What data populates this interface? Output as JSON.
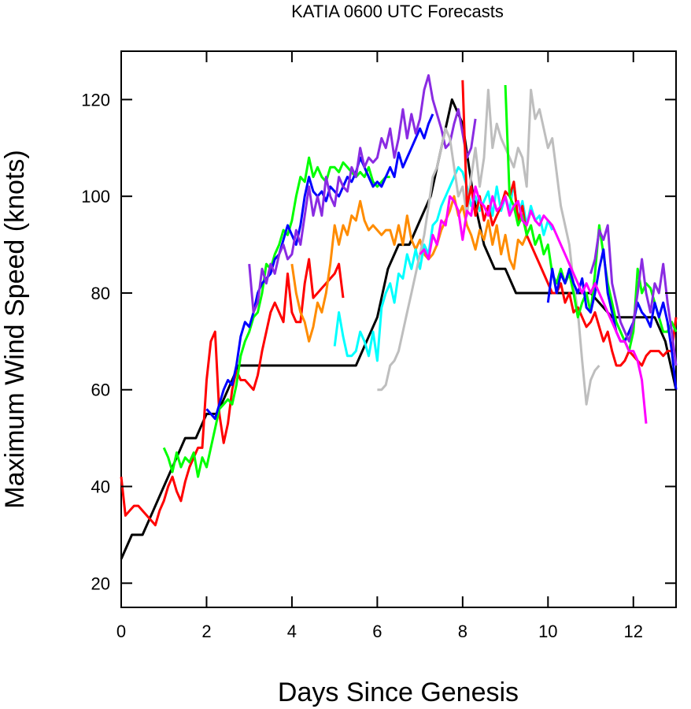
{
  "chart_data": {
    "type": "line",
    "title": "KATIA 0600 UTC Forecasts",
    "xlabel": "Days Since Genesis",
    "ylabel": "Maximum Wind Speed (knots)",
    "xlim": [
      0,
      13
    ],
    "ylim": [
      15,
      130
    ],
    "xticks": [
      0,
      2,
      4,
      6,
      8,
      10,
      12
    ],
    "yticks": [
      20,
      40,
      60,
      80,
      100,
      120
    ],
    "grid": false,
    "legend": "none",
    "series": [
      {
        "color": "#000000",
        "x": [
          0,
          0.25,
          0.5,
          0.75,
          1.0,
          1.25,
          1.5,
          1.75,
          2.0,
          2.25,
          2.5,
          2.75,
          3.0,
          3.5,
          4.0,
          4.5,
          5.0,
          5.5,
          5.75,
          6.0,
          6.25,
          6.5,
          6.75,
          7.0,
          7.25,
          7.5,
          7.75,
          8.0,
          8.25,
          8.5,
          8.75,
          9.0,
          9.25,
          9.5,
          10.0,
          10.5,
          11.0,
          11.5,
          12.0,
          12.5,
          12.75,
          13.0
        ],
        "y": [
          25,
          30,
          30,
          35,
          40,
          45,
          50,
          50,
          55,
          55,
          60,
          65,
          65,
          65,
          65,
          65,
          65,
          65,
          70,
          75,
          85,
          90,
          90,
          95,
          100,
          110,
          120,
          115,
          100,
          90,
          85,
          85,
          80,
          80,
          80,
          80,
          80,
          75,
          75,
          75,
          70,
          60
        ]
      },
      {
        "color": "#ff0000",
        "x": [
          0,
          0.1,
          0.2,
          0.3,
          0.4,
          0.5,
          0.6,
          0.7,
          0.8,
          0.9,
          1.0,
          1.1,
          1.2,
          1.3,
          1.4,
          1.5,
          1.6,
          1.7,
          1.8,
          1.9,
          2.0,
          2.1,
          2.2,
          2.3,
          2.4,
          2.5,
          2.6,
          2.7,
          2.8,
          2.9,
          3.0,
          3.1,
          3.2,
          3.3,
          3.4,
          3.5,
          3.6,
          3.7,
          3.8,
          3.9,
          4.0,
          4.1,
          4.2,
          4.3,
          4.4,
          4.5,
          4.6,
          4.7,
          4.8,
          4.9,
          5.0,
          5.1,
          5.2
        ],
        "y": [
          42,
          34,
          35,
          36,
          36,
          35,
          34,
          33,
          32,
          35,
          37,
          40,
          42,
          39,
          37,
          41,
          44,
          46,
          48,
          48,
          62,
          70,
          72,
          55,
          49,
          53,
          60,
          64,
          62,
          62,
          61,
          60,
          63,
          68,
          72,
          76,
          78,
          76,
          74,
          84,
          76,
          74,
          74,
          82,
          87,
          79,
          80,
          81,
          82,
          83,
          84,
          86,
          79
        ]
      },
      {
        "color": "#00ff00",
        "x": [
          1.0,
          1.1,
          1.2,
          1.3,
          1.4,
          1.5,
          1.6,
          1.7,
          1.8,
          1.9,
          2.0,
          2.1,
          2.2,
          2.3,
          2.4,
          2.5,
          2.6,
          2.7,
          2.8,
          2.9,
          3.0,
          3.1,
          3.2,
          3.3,
          3.4,
          3.5,
          3.6,
          3.7,
          3.8,
          3.9,
          4.0,
          4.1,
          4.2,
          4.3,
          4.4,
          4.5,
          4.6,
          4.7,
          4.8,
          4.9,
          5.0,
          5.1,
          5.2,
          5.3,
          5.4,
          5.5,
          5.6,
          5.7,
          5.8,
          5.9,
          6.0,
          6.1,
          6.2,
          6.3
        ],
        "y": [
          48,
          46,
          43,
          47,
          44,
          46,
          45,
          47,
          42,
          46,
          44,
          48,
          52,
          56,
          57,
          58,
          57,
          61,
          67,
          70,
          72,
          75,
          76,
          80,
          86,
          85,
          88,
          90,
          93,
          92,
          95,
          100,
          104,
          103,
          108,
          104,
          106,
          104,
          103,
          106,
          106,
          105,
          107,
          106,
          105,
          104,
          105,
          104,
          106,
          103,
          102,
          103,
          104,
          104
        ]
      },
      {
        "color": "#0000ff",
        "x": [
          2.0,
          2.1,
          2.2,
          2.3,
          2.4,
          2.5,
          2.6,
          2.7,
          2.8,
          2.9,
          3.0,
          3.1,
          3.2,
          3.3,
          3.4,
          3.5,
          3.6,
          3.7,
          3.8,
          3.9,
          4.0,
          4.1,
          4.2,
          4.3,
          4.4,
          4.5,
          4.6,
          4.7,
          4.8,
          4.9,
          5.0,
          5.1,
          5.2,
          5.3,
          5.4,
          5.5,
          5.6,
          5.7,
          5.8,
          5.9,
          6.0,
          6.1,
          6.2,
          6.3,
          6.4,
          6.5,
          6.6,
          6.7,
          6.8,
          6.9,
          7.0,
          7.1,
          7.2,
          7.3
        ],
        "y": [
          56,
          55,
          54,
          57,
          60,
          62,
          61,
          65,
          71,
          74,
          73,
          76,
          80,
          82,
          83,
          84,
          87,
          88,
          91,
          94,
          92,
          90,
          94,
          100,
          104,
          101,
          100,
          101,
          99,
          102,
          101,
          100,
          102,
          104,
          103,
          105,
          108,
          106,
          104,
          102,
          103,
          102,
          104,
          106,
          104,
          109,
          106,
          108,
          110,
          112,
          114,
          112,
          115,
          117
        ]
      },
      {
        "color": "#8a2be2",
        "x": [
          3.0,
          3.1,
          3.2,
          3.3,
          3.4,
          3.5,
          3.6,
          3.7,
          3.8,
          3.9,
          4.0,
          4.1,
          4.2,
          4.3,
          4.4,
          4.5,
          4.6,
          4.7,
          4.8,
          4.9,
          5.0,
          5.1,
          5.2,
          5.3,
          5.4,
          5.5,
          5.6,
          5.7,
          5.8,
          5.9,
          6.0,
          6.1,
          6.2,
          6.3,
          6.4,
          6.5,
          6.6,
          6.7,
          6.8,
          6.9,
          7.0,
          7.1,
          7.2,
          7.3,
          7.4,
          7.5,
          7.6,
          7.7,
          7.8,
          7.9,
          8.0,
          8.1,
          8.2,
          8.3
        ],
        "y": [
          86,
          76,
          78,
          85,
          82,
          86,
          84,
          88,
          90,
          87,
          88,
          93,
          90,
          96,
          102,
          96,
          100,
          96,
          104,
          100,
          98,
          104,
          102,
          101,
          106,
          104,
          110,
          106,
          108,
          107,
          108,
          112,
          110,
          114,
          108,
          112,
          118,
          112,
          117,
          113,
          116,
          122,
          125,
          120,
          117,
          114,
          110,
          111,
          115,
          118,
          113,
          108,
          110,
          116
        ]
      },
      {
        "color": "#ff8c00",
        "x": [
          4.0,
          4.1,
          4.2,
          4.3,
          4.4,
          4.5,
          4.6,
          4.7,
          4.8,
          4.9,
          5.0,
          5.1,
          5.2,
          5.3,
          5.4,
          5.5,
          5.6,
          5.7,
          5.8,
          5.9,
          6.0,
          6.1,
          6.2,
          6.3,
          6.4,
          6.5,
          6.6,
          6.7,
          6.8,
          6.9,
          7.0,
          7.1,
          7.2,
          7.3,
          7.4,
          7.5,
          7.6,
          7.7,
          7.8,
          7.9,
          8.0,
          8.1,
          8.2,
          8.3,
          8.4,
          8.5,
          8.6,
          8.7,
          8.8,
          8.9,
          9.0,
          9.1,
          9.2,
          9.3,
          9.4,
          9.5
        ],
        "y": [
          86,
          80,
          76,
          74,
          70,
          73,
          78,
          76,
          80,
          86,
          94,
          90,
          94,
          92,
          96,
          95,
          99,
          95,
          93,
          94,
          93,
          92,
          93,
          93,
          90,
          94,
          90,
          96,
          91,
          89,
          91,
          88,
          87,
          88,
          90,
          93,
          95,
          97,
          100,
          96,
          98,
          94,
          92,
          89,
          93,
          91,
          95,
          90,
          94,
          88,
          92,
          87,
          85,
          91,
          90,
          92
        ]
      },
      {
        "color": "#00ffff",
        "x": [
          5.0,
          5.1,
          5.2,
          5.3,
          5.4,
          5.5,
          5.6,
          5.7,
          5.8,
          5.9,
          6.0,
          6.1,
          6.2,
          6.3,
          6.4,
          6.5,
          6.6,
          6.7,
          6.8,
          6.9,
          7.0,
          7.1,
          7.2,
          7.3,
          7.4,
          7.5,
          7.6,
          7.7,
          7.8,
          7.9,
          8.0,
          8.1,
          8.2,
          8.3,
          8.4,
          8.5,
          8.6,
          8.7,
          8.8,
          8.9,
          9.0,
          9.1,
          9.2,
          9.3,
          9.4,
          9.5,
          9.6,
          9.7,
          9.8,
          9.9,
          10.0,
          10.1
        ],
        "y": [
          69,
          76,
          71,
          67,
          67,
          68,
          72,
          70,
          67,
          72,
          66,
          77,
          80,
          82,
          78,
          84,
          83,
          88,
          85,
          89,
          85,
          90,
          88,
          94,
          95,
          98,
          100,
          102,
          104,
          106,
          105,
          102,
          98,
          100,
          97,
          99,
          101,
          96,
          102,
          97,
          100,
          97,
          103,
          95,
          99,
          94,
          98,
          95,
          96,
          92,
          95,
          93
        ]
      },
      {
        "color": "#bebebe",
        "x": [
          6.0,
          6.1,
          6.2,
          6.3,
          6.4,
          6.5,
          6.6,
          6.7,
          6.8,
          6.9,
          7.0,
          7.1,
          7.2,
          7.3,
          7.4,
          7.5,
          7.6,
          7.7,
          7.8,
          7.9,
          8.0,
          8.1,
          8.2,
          8.3,
          8.4,
          8.5,
          8.6,
          8.7,
          8.8,
          8.9,
          9.0,
          9.1,
          9.2,
          9.3,
          9.4,
          9.5,
          9.6,
          9.7,
          9.8,
          9.9,
          10.0,
          10.1,
          10.2,
          10.3,
          10.4,
          10.5,
          10.6,
          10.7,
          10.8,
          10.9,
          11.0,
          11.1,
          11.2
        ],
        "y": [
          60,
          60,
          61,
          65,
          66,
          68,
          72,
          76,
          80,
          84,
          88,
          92,
          98,
          104,
          106,
          110,
          114,
          112,
          106,
          100,
          102,
          96,
          104,
          110,
          102,
          108,
          122,
          110,
          115,
          112,
          110,
          108,
          106,
          110,
          108,
          102,
          122,
          116,
          118,
          114,
          110,
          112,
          105,
          98,
          94,
          90,
          82,
          76,
          66,
          57,
          62,
          64,
          65
        ]
      },
      {
        "color": "#ff0000",
        "x": [
          8.0,
          8.1,
          8.2,
          8.3,
          8.4,
          8.5,
          8.6,
          8.7,
          8.8,
          8.9,
          9.0,
          9.1,
          9.2,
          9.3,
          9.4,
          9.5,
          9.6,
          9.7,
          9.8,
          9.9,
          10.0,
          10.1,
          10.2,
          10.3,
          10.4,
          10.5,
          10.6,
          10.7,
          10.8,
          10.9,
          11.0,
          11.1,
          11.2,
          11.3,
          11.4,
          11.5,
          11.6,
          11.7,
          11.8,
          11.9,
          12.0,
          12.1,
          12.2,
          12.3,
          12.4,
          12.5,
          12.6,
          12.7,
          12.8,
          12.9,
          13.0
        ],
        "y": [
          124,
          98,
          102,
          96,
          100,
          95,
          98,
          94,
          96,
          98,
          101,
          100,
          103,
          95,
          98,
          92,
          90,
          88,
          86,
          84,
          82,
          80,
          80,
          82,
          78,
          80,
          76,
          77,
          75,
          73,
          74,
          76,
          73,
          70,
          72,
          68,
          65,
          65,
          66,
          68,
          67,
          66,
          65,
          67,
          68,
          68,
          68,
          67,
          68,
          68,
          75
        ]
      },
      {
        "color": "#00ff00",
        "x": [
          9.0,
          9.1,
          9.2,
          9.3,
          9.4,
          9.5,
          9.6,
          9.7,
          9.8,
          9.9,
          10.0,
          10.1,
          10.2,
          10.3,
          10.4,
          10.5,
          10.6,
          10.7,
          10.8,
          10.9,
          11.0,
          11.1,
          11.2,
          11.3,
          11.4,
          11.5,
          11.6,
          11.7,
          11.8,
          11.9,
          12.0,
          12.1,
          12.2,
          12.3,
          12.4,
          12.5,
          12.6,
          12.7,
          12.8,
          12.9,
          13.0
        ],
        "y": [
          123,
          100,
          98,
          94,
          96,
          92,
          94,
          90,
          92,
          88,
          90,
          84,
          82,
          85,
          82,
          84,
          80,
          75,
          78,
          80,
          76,
          84,
          94,
          88,
          82,
          78,
          74,
          72,
          70,
          68,
          72,
          85,
          80,
          82,
          81,
          78,
          75,
          72,
          72,
          74,
          72
        ]
      },
      {
        "color": "#0000ff",
        "x": [
          10.0,
          10.1,
          10.2,
          10.3,
          10.4,
          10.5,
          10.6,
          10.7,
          10.8,
          10.9,
          11.0,
          11.1,
          11.2,
          11.3,
          11.4,
          11.5,
          11.6,
          11.7,
          11.8,
          11.9,
          12.0,
          12.1,
          12.2,
          12.3,
          12.4,
          12.5,
          12.6,
          12.7,
          12.8,
          12.9,
          13.0
        ],
        "y": [
          78,
          85,
          80,
          84,
          82,
          85,
          82,
          80,
          83,
          77,
          76,
          80,
          85,
          89,
          80,
          76,
          72,
          70,
          70,
          72,
          74,
          78,
          76,
          75,
          73,
          78,
          75,
          78,
          74,
          68,
          60
        ]
      },
      {
        "color": "#ff00ff",
        "x": [
          7.0,
          7.1,
          7.2,
          7.3,
          7.4,
          7.5,
          7.6,
          7.7,
          7.8,
          7.9,
          8.0,
          8.1,
          8.2,
          8.3,
          8.4,
          8.5,
          8.6,
          8.7,
          8.8,
          8.9,
          9.0,
          9.1,
          9.2,
          9.3,
          9.4,
          9.5,
          9.6,
          9.7,
          9.8,
          9.9,
          10.0,
          10.1,
          10.2,
          10.3,
          10.4,
          10.5,
          10.6,
          10.7,
          10.8,
          10.9,
          11.0,
          11.1,
          11.2,
          11.3,
          11.4,
          11.5,
          11.6,
          11.7,
          11.8,
          11.9,
          12.0,
          12.1,
          12.2,
          12.3
        ],
        "y": [
          88,
          89,
          87,
          92,
          90,
          95,
          94,
          100,
          99,
          97,
          91,
          97,
          96,
          102,
          99,
          98,
          96,
          100,
          97,
          98,
          100,
          96,
          98,
          99,
          95,
          94,
          97,
          95,
          94,
          96,
          95,
          94,
          92,
          90,
          88,
          86,
          84,
          82,
          80,
          82,
          80,
          82,
          80,
          78,
          76,
          74,
          72,
          70,
          70,
          68,
          68,
          66,
          62,
          53
        ]
      },
      {
        "color": "#8a2be2",
        "x": [
          11.0,
          11.1,
          11.2,
          11.3,
          11.4,
          11.5,
          11.6,
          11.7,
          11.8,
          11.9,
          12.0,
          12.1,
          12.2,
          12.3,
          12.4,
          12.5,
          12.6,
          12.7,
          12.8,
          12.9,
          13.0
        ],
        "y": [
          84,
          87,
          93,
          91,
          94,
          82,
          78,
          74,
          72,
          70,
          74,
          80,
          87,
          80,
          76,
          82,
          80,
          86,
          78,
          72,
          65
        ]
      }
    ]
  }
}
